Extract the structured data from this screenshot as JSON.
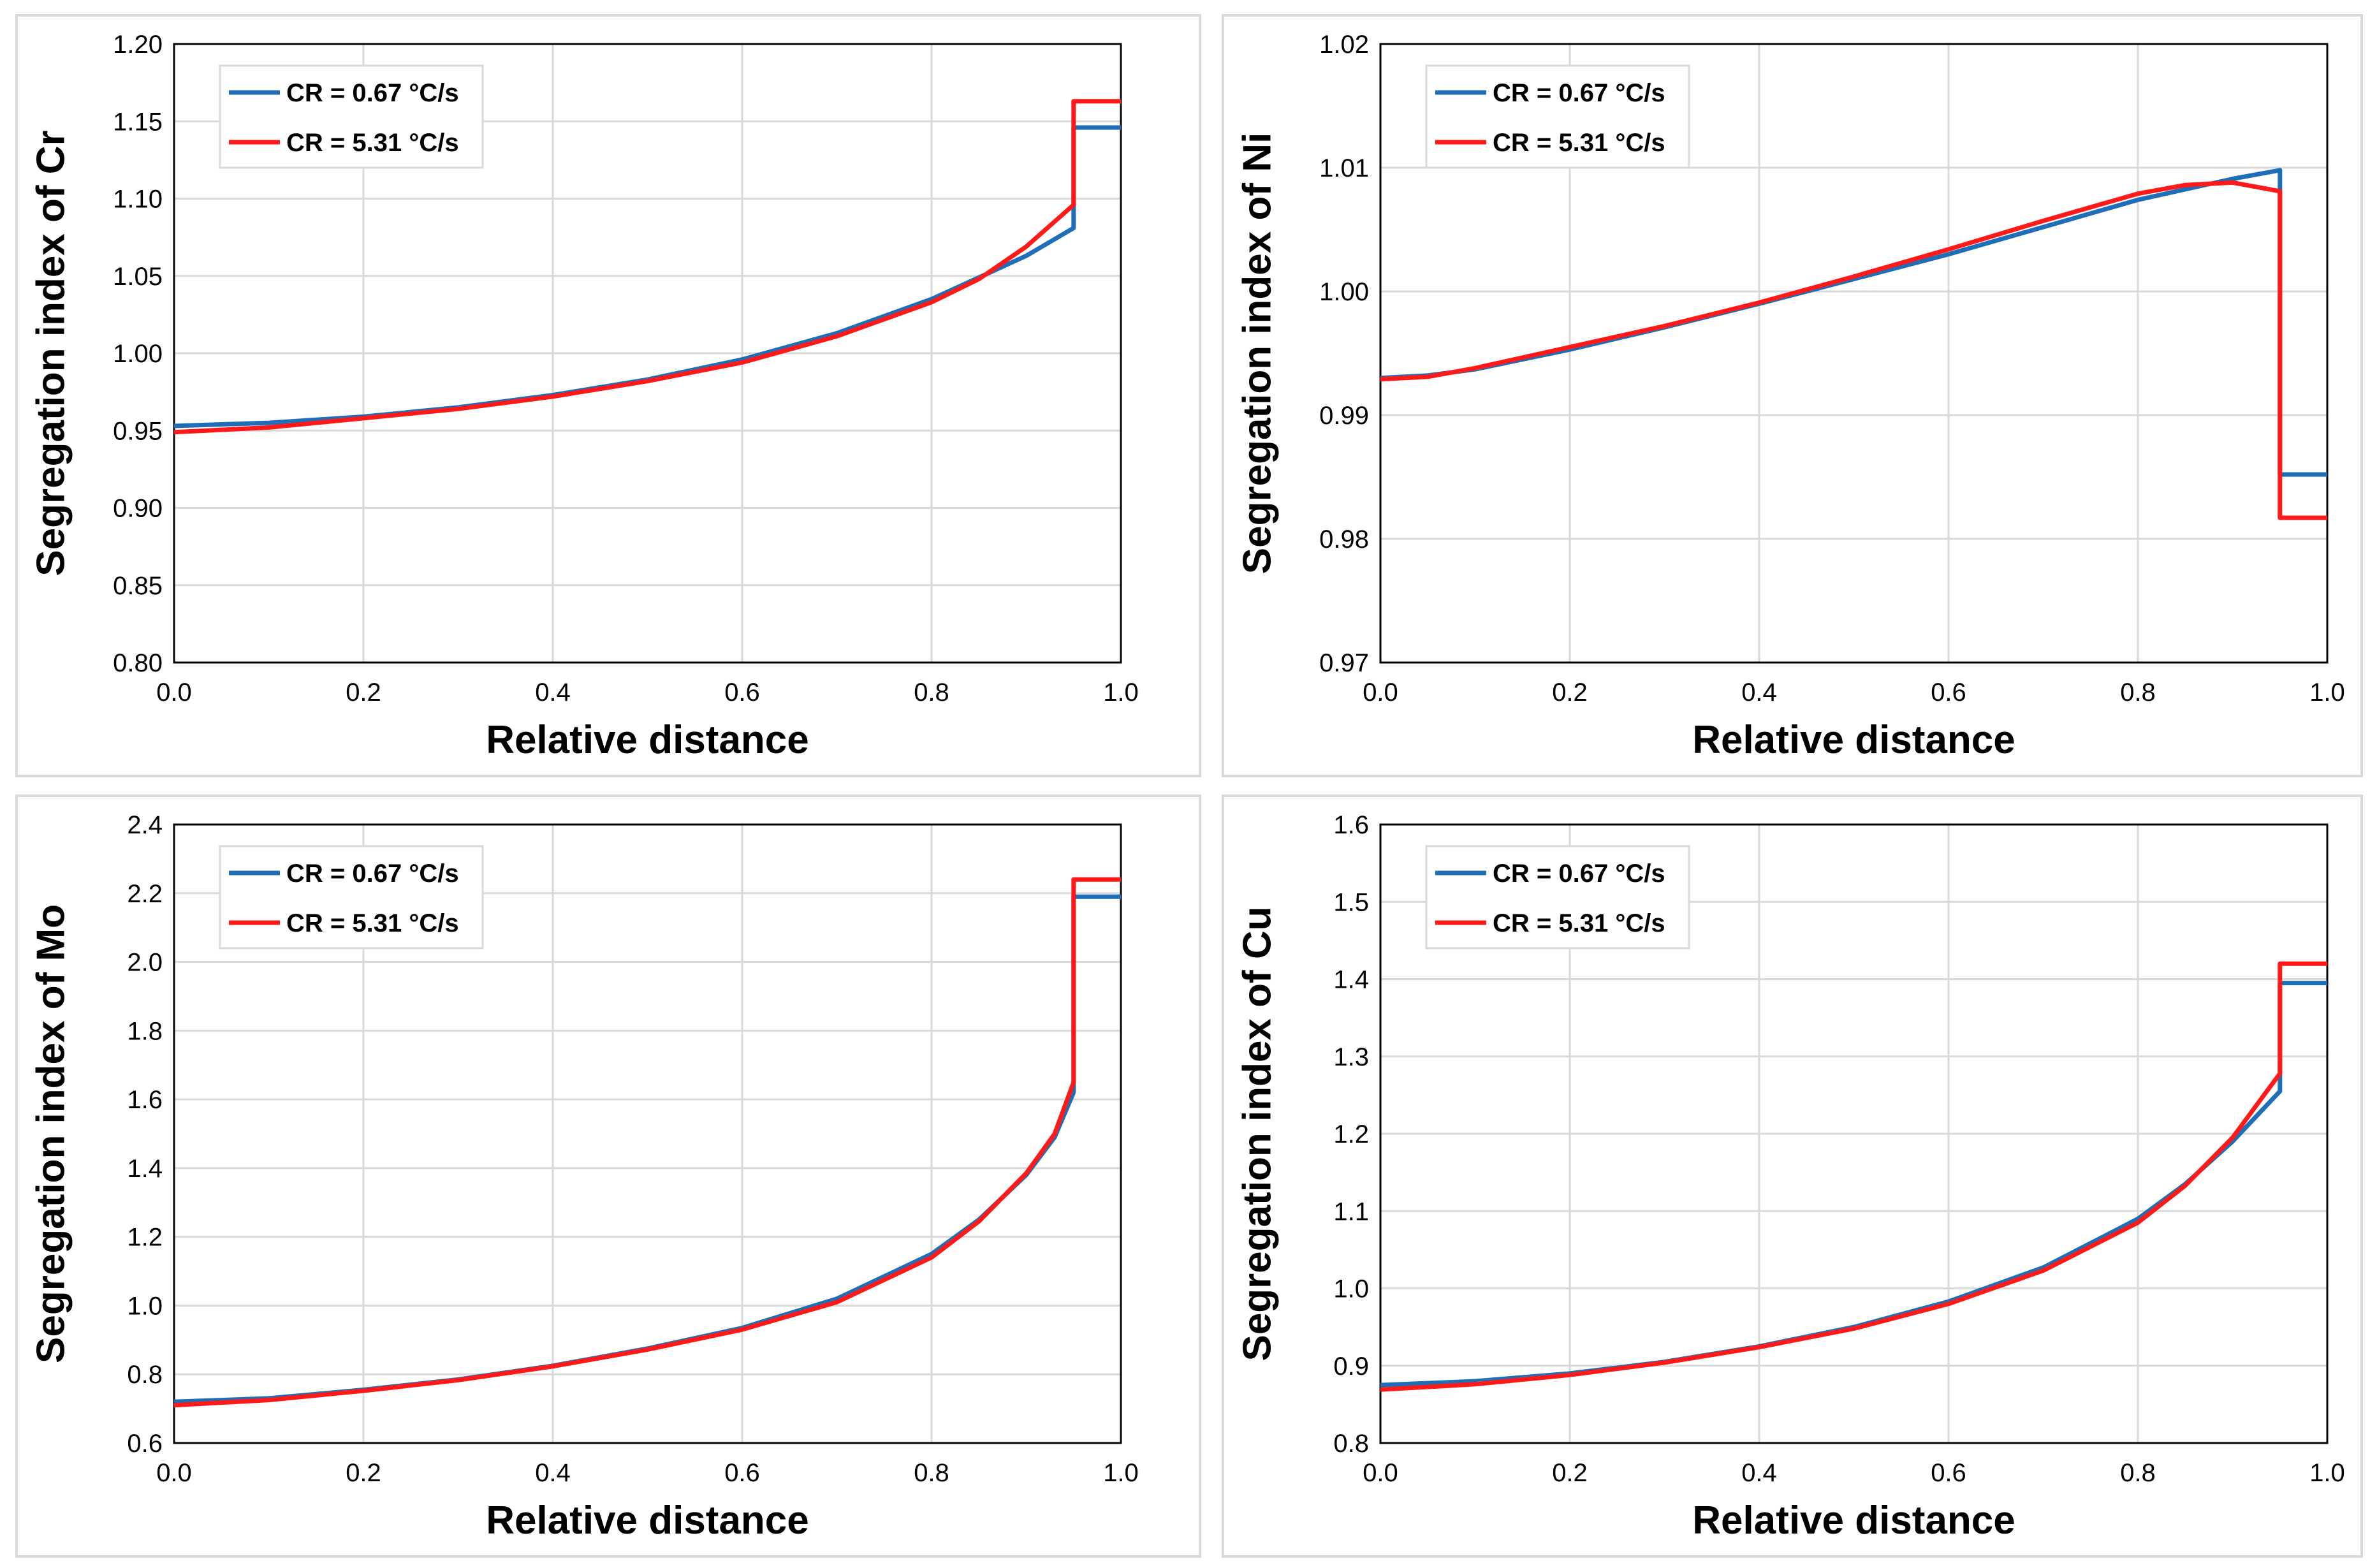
{
  "colors": {
    "blue": "#1f6fb8",
    "red": "#ff1a1a"
  },
  "chart_data": [
    {
      "type": "line",
      "title": "",
      "xlabel": "Relative distance",
      "ylabel": "Segregation index of Cr",
      "xlim": [
        0,
        1
      ],
      "ylim": [
        0.8,
        1.2
      ],
      "xticks": [
        "0.0",
        "0.2",
        "0.4",
        "0.6",
        "0.8",
        "1.0"
      ],
      "yticks": [
        "0.80",
        "0.85",
        "0.90",
        "0.95",
        "1.00",
        "1.05",
        "1.10",
        "1.15",
        "1.20"
      ],
      "legend": "top-left",
      "series": [
        {
          "name": "CR = 0.67 °C/s",
          "color": "#1f6fb8",
          "x": [
            0,
            0.1,
            0.2,
            0.3,
            0.4,
            0.5,
            0.6,
            0.7,
            0.8,
            0.85,
            0.9,
            0.95,
            0.95,
            1.0
          ],
          "y": [
            0.953,
            0.955,
            0.959,
            0.965,
            0.973,
            0.983,
            0.996,
            1.013,
            1.035,
            1.049,
            1.063,
            1.081,
            1.146,
            1.146
          ]
        },
        {
          "name": "CR = 5.31 °C/s",
          "color": "#ff1a1a",
          "x": [
            0,
            0.1,
            0.2,
            0.3,
            0.4,
            0.5,
            0.6,
            0.7,
            0.8,
            0.85,
            0.9,
            0.95,
            0.95,
            1.0
          ],
          "y": [
            0.949,
            0.952,
            0.958,
            0.964,
            0.972,
            0.982,
            0.994,
            1.011,
            1.033,
            1.048,
            1.069,
            1.096,
            1.163,
            1.163
          ]
        }
      ]
    },
    {
      "type": "line",
      "title": "",
      "xlabel": "Relative distance",
      "ylabel": "Segregation index of Ni",
      "xlim": [
        0,
        1
      ],
      "ylim": [
        0.97,
        1.02
      ],
      "xticks": [
        "0.0",
        "0.2",
        "0.4",
        "0.6",
        "0.8",
        "1.0"
      ],
      "yticks": [
        "0.97",
        "0.98",
        "0.99",
        "1.00",
        "1.01",
        "1.02"
      ],
      "legend": "top-left",
      "series": [
        {
          "name": "CR = 0.67 °C/s",
          "color": "#1f6fb8",
          "x": [
            0,
            0.05,
            0.1,
            0.2,
            0.3,
            0.4,
            0.5,
            0.6,
            0.7,
            0.8,
            0.9,
            0.95,
            0.95,
            1.0
          ],
          "y": [
            0.993,
            0.9932,
            0.9937,
            0.9953,
            0.9971,
            0.999,
            1.001,
            1.003,
            1.0052,
            1.0074,
            1.0091,
            1.0098,
            0.9852,
            0.9852
          ]
        },
        {
          "name": "CR = 5.31 °C/s",
          "color": "#ff1a1a",
          "x": [
            0,
            0.05,
            0.1,
            0.2,
            0.3,
            0.4,
            0.5,
            0.6,
            0.7,
            0.8,
            0.85,
            0.9,
            0.95,
            0.95,
            1.0
          ],
          "y": [
            0.9929,
            0.9931,
            0.9938,
            0.9955,
            0.9972,
            0.9991,
            1.0012,
            1.0034,
            1.0057,
            1.0079,
            1.0086,
            1.0088,
            1.0081,
            0.9817,
            0.9817
          ]
        }
      ]
    },
    {
      "type": "line",
      "title": "",
      "xlabel": "Relative distance",
      "ylabel": "Segregation index of Mo",
      "xlim": [
        0,
        1
      ],
      "ylim": [
        0.6,
        2.4
      ],
      "xticks": [
        "0.0",
        "0.2",
        "0.4",
        "0.6",
        "0.8",
        "1.0"
      ],
      "yticks": [
        "0.6",
        "0.8",
        "1.0",
        "1.2",
        "1.4",
        "1.6",
        "1.8",
        "2.0",
        "2.2",
        "2.4"
      ],
      "legend": "top-left",
      "series": [
        {
          "name": "CR = 0.67 °C/s",
          "color": "#1f6fb8",
          "x": [
            0,
            0.1,
            0.2,
            0.3,
            0.4,
            0.5,
            0.6,
            0.7,
            0.8,
            0.85,
            0.9,
            0.93,
            0.95,
            0.95,
            1.0
          ],
          "y": [
            0.72,
            0.73,
            0.755,
            0.785,
            0.825,
            0.875,
            0.935,
            1.02,
            1.15,
            1.25,
            1.38,
            1.49,
            1.62,
            2.19,
            2.19
          ]
        },
        {
          "name": "CR = 5.31 °C/s",
          "color": "#ff1a1a",
          "x": [
            0,
            0.1,
            0.2,
            0.3,
            0.4,
            0.5,
            0.6,
            0.7,
            0.8,
            0.85,
            0.9,
            0.93,
            0.95,
            0.95,
            1.0
          ],
          "y": [
            0.71,
            0.725,
            0.752,
            0.783,
            0.823,
            0.872,
            0.93,
            1.01,
            1.14,
            1.245,
            1.385,
            1.5,
            1.65,
            2.24,
            2.24
          ]
        }
      ]
    },
    {
      "type": "line",
      "title": "",
      "xlabel": "Relative distance",
      "ylabel": "Segregation index of Cu",
      "xlim": [
        0,
        1
      ],
      "ylim": [
        0.8,
        1.6
      ],
      "xticks": [
        "0.0",
        "0.2",
        "0.4",
        "0.6",
        "0.8",
        "1.0"
      ],
      "yticks": [
        "0.8",
        "0.9",
        "1.0",
        "1.1",
        "1.2",
        "1.3",
        "1.4",
        "1.5",
        "1.6"
      ],
      "legend": "top-left",
      "series": [
        {
          "name": "CR = 0.67 °C/s",
          "color": "#1f6fb8",
          "x": [
            0,
            0.1,
            0.2,
            0.3,
            0.4,
            0.5,
            0.6,
            0.7,
            0.8,
            0.85,
            0.9,
            0.95,
            0.95,
            1.0
          ],
          "y": [
            0.875,
            0.88,
            0.89,
            0.905,
            0.925,
            0.95,
            0.983,
            1.027,
            1.09,
            1.135,
            1.19,
            1.255,
            1.395,
            1.395
          ]
        },
        {
          "name": "CR = 5.31 °C/s",
          "color": "#ff1a1a",
          "x": [
            0,
            0.1,
            0.2,
            0.3,
            0.4,
            0.5,
            0.6,
            0.7,
            0.8,
            0.85,
            0.9,
            0.95,
            0.95,
            1.0
          ],
          "y": [
            0.869,
            0.876,
            0.888,
            0.904,
            0.924,
            0.948,
            0.98,
            1.023,
            1.085,
            1.133,
            1.195,
            1.278,
            1.42,
            1.42
          ]
        }
      ]
    }
  ]
}
